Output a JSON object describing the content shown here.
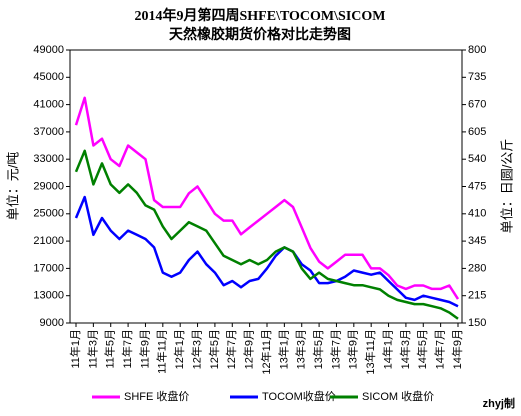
{
  "chart_data": {
    "type": "line",
    "title": "2014年9月第四周SHFE\\TOCOM\\SICOM",
    "subtitle": "天然橡胶期货价格对比走势图",
    "y_label": "单位：元/吨",
    "y2_label": "单位：日圆/公斤",
    "footer": "zhyj制",
    "categories": [
      "11年1月",
      null,
      "11年3月",
      null,
      "11年5月",
      null,
      "11年7月",
      null,
      "11年9月",
      null,
      "11年11月",
      null,
      "12年1月",
      null,
      "12年3月",
      null,
      "12年5月",
      null,
      "12年7月",
      null,
      "12年9月",
      null,
      "12年11月",
      null,
      "13年1月",
      null,
      "13年3月",
      null,
      "13年5月",
      null,
      "13年7月",
      null,
      "13年9月",
      null,
      "13年11月",
      null,
      "14年1月",
      null,
      "14年3月",
      null,
      "14年5月",
      null,
      "14年7月",
      null,
      "14年9月"
    ],
    "ylim": [
      9000,
      49000
    ],
    "yticks": [
      9000,
      13000,
      17000,
      21000,
      25000,
      29000,
      33000,
      37000,
      41000,
      45000,
      49000
    ],
    "y2lim": [
      150,
      800
    ],
    "y2ticks": [
      150,
      215,
      280,
      345,
      410,
      475,
      540,
      605,
      670,
      735,
      800
    ],
    "legend": "bottom",
    "series": [
      {
        "name": "SHFE 收盘价",
        "color": "#ff00ff",
        "axis": "y",
        "values": [
          38000,
          42000,
          35000,
          36000,
          33000,
          32000,
          35000,
          34000,
          33000,
          27000,
          26000,
          26000,
          26000,
          28000,
          29000,
          27000,
          25000,
          24000,
          24000,
          22000,
          23000,
          24000,
          25000,
          26000,
          27000,
          26000,
          23000,
          20000,
          18000,
          17000,
          18000,
          19000,
          19000,
          19000,
          17000,
          17000,
          16000,
          14500,
          14000,
          14500,
          14500,
          14000,
          14000,
          14500,
          12500
        ]
      },
      {
        "name": "TOCOM收盘价",
        "color": "#0000ff",
        "axis": "y2",
        "values": [
          400,
          450,
          360,
          400,
          370,
          350,
          370,
          360,
          350,
          330,
          270,
          260,
          270,
          300,
          320,
          290,
          270,
          240,
          250,
          235,
          250,
          255,
          280,
          310,
          330,
          320,
          290,
          275,
          245,
          245,
          250,
          260,
          275,
          270,
          265,
          270,
          250,
          230,
          210,
          205,
          215,
          210,
          205,
          200,
          190
        ]
      },
      {
        "name": "SICOM 收盘价",
        "color": "#008000",
        "axis": "y2",
        "values": [
          510,
          560,
          480,
          530,
          480,
          460,
          480,
          460,
          430,
          420,
          380,
          350,
          370,
          390,
          380,
          370,
          340,
          310,
          300,
          290,
          300,
          290,
          300,
          320,
          330,
          320,
          280,
          255,
          270,
          255,
          250,
          245,
          240,
          240,
          235,
          230,
          215,
          205,
          200,
          195,
          195,
          190,
          185,
          175,
          160
        ]
      }
    ]
  }
}
